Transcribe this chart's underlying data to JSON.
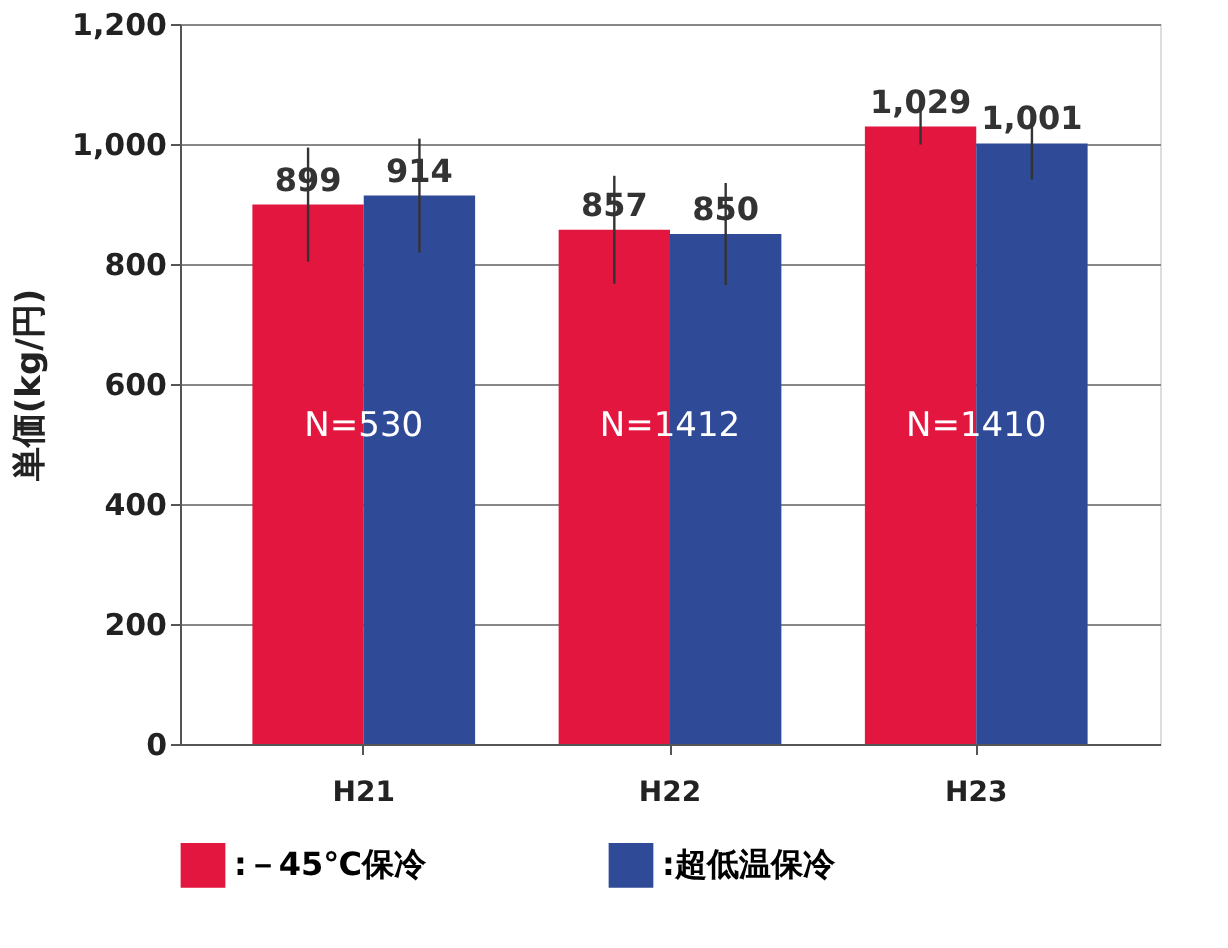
{
  "chart_data": {
    "type": "bar",
    "ylabel": "単価(kg/円)",
    "categories": [
      "H21",
      "H22",
      "H23"
    ],
    "series": [
      {
        "name": ":－45℃保冷",
        "color": "#e2163f",
        "values": [
          899,
          857,
          1029
        ],
        "value_labels": [
          "899",
          "857",
          "1,029"
        ],
        "errors": [
          95,
          90,
          30
        ]
      },
      {
        "name": ":超低温保冷",
        "color": "#2f4a97",
        "values": [
          914,
          850,
          1001
        ],
        "value_labels": [
          "914",
          "850",
          "1,001"
        ],
        "errors": [
          95,
          85,
          60
        ]
      }
    ],
    "ylim": [
      0,
      1200
    ],
    "yticks": [
      0,
      200,
      400,
      600,
      800,
      {
        "value": 1000,
        "label": "1,000"
      },
      {
        "value": 1200,
        "label": "1,200"
      }
    ],
    "grid": "y",
    "legend": "bottom",
    "annotations": [
      {
        "text": "N=530",
        "x": "H21",
        "y": 530
      },
      {
        "text": "N=1412",
        "x": "H22",
        "y": 530
      },
      {
        "text": "N=1410",
        "x": "H23",
        "y": 530
      }
    ]
  }
}
